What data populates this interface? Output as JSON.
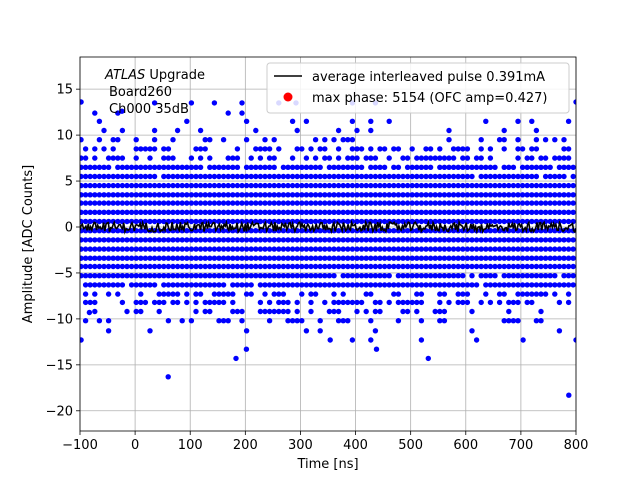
{
  "chart_data": {
    "type": "scatter",
    "xlabel": "Time [ns]",
    "ylabel": "Amplitude [ADC Counts]",
    "xlim": [
      -100,
      800
    ],
    "ylim": [
      -22.2,
      18.5
    ],
    "xticks": [
      -100,
      0,
      100,
      200,
      300,
      400,
      500,
      600,
      700,
      800
    ],
    "yticks": [
      -20,
      -15,
      -10,
      -5,
      0,
      5,
      10,
      15
    ],
    "grid": true,
    "legend_position": "top-right",
    "annotation": {
      "italic": "ATLAS",
      "rest": " Upgrade",
      "line2": "Board260",
      "line3": "Ch000 35dB"
    },
    "series": [
      {
        "name": "average interleaved pulse 0.391mA",
        "kind": "line",
        "color": "#000000",
        "x_range": [
          -100,
          800
        ],
        "y_center": 0,
        "y_amplitude": 0.7
      },
      {
        "name": "max phase: 5154 (OFC amp=0.427)",
        "kind": "marker",
        "color": "#ff0000"
      },
      {
        "kind": "scatter",
        "color": "#0000ff",
        "x_range": [
          -100,
          800
        ],
        "y_levels": [
          -12.3,
          -11.3,
          -10.2,
          -9.2,
          -8.2,
          -7.3,
          -6.3,
          -5.3,
          -4.3,
          -3.4,
          -2.4,
          -1.4,
          -0.4,
          0.6,
          1.6,
          2.6,
          3.5,
          4.5,
          5.5,
          6.5,
          7.5,
          8.5,
          9.5,
          10.5,
          11.5,
          12.4,
          13.5
        ],
        "outliers": [
          {
            "x": -98,
            "y": 13.6
          },
          {
            "x": -98,
            "y": -12.3
          },
          {
            "x": -83,
            "y": -9.3
          },
          {
            "x": -24,
            "y": 12.6
          },
          {
            "x": 60,
            "y": -16.3
          },
          {
            "x": 183,
            "y": -14.3
          },
          {
            "x": 202,
            "y": -13.3
          },
          {
            "x": 292,
            "y": 13.5
          },
          {
            "x": 354,
            "y": -12.3
          },
          {
            "x": 438,
            "y": -13.3
          },
          {
            "x": 532,
            "y": -14.3
          },
          {
            "x": 704,
            "y": -12.3
          },
          {
            "x": 787,
            "y": -18.3
          },
          {
            "x": 800,
            "y": 13.6
          },
          {
            "x": 800,
            "y": -12.3
          }
        ]
      }
    ]
  }
}
